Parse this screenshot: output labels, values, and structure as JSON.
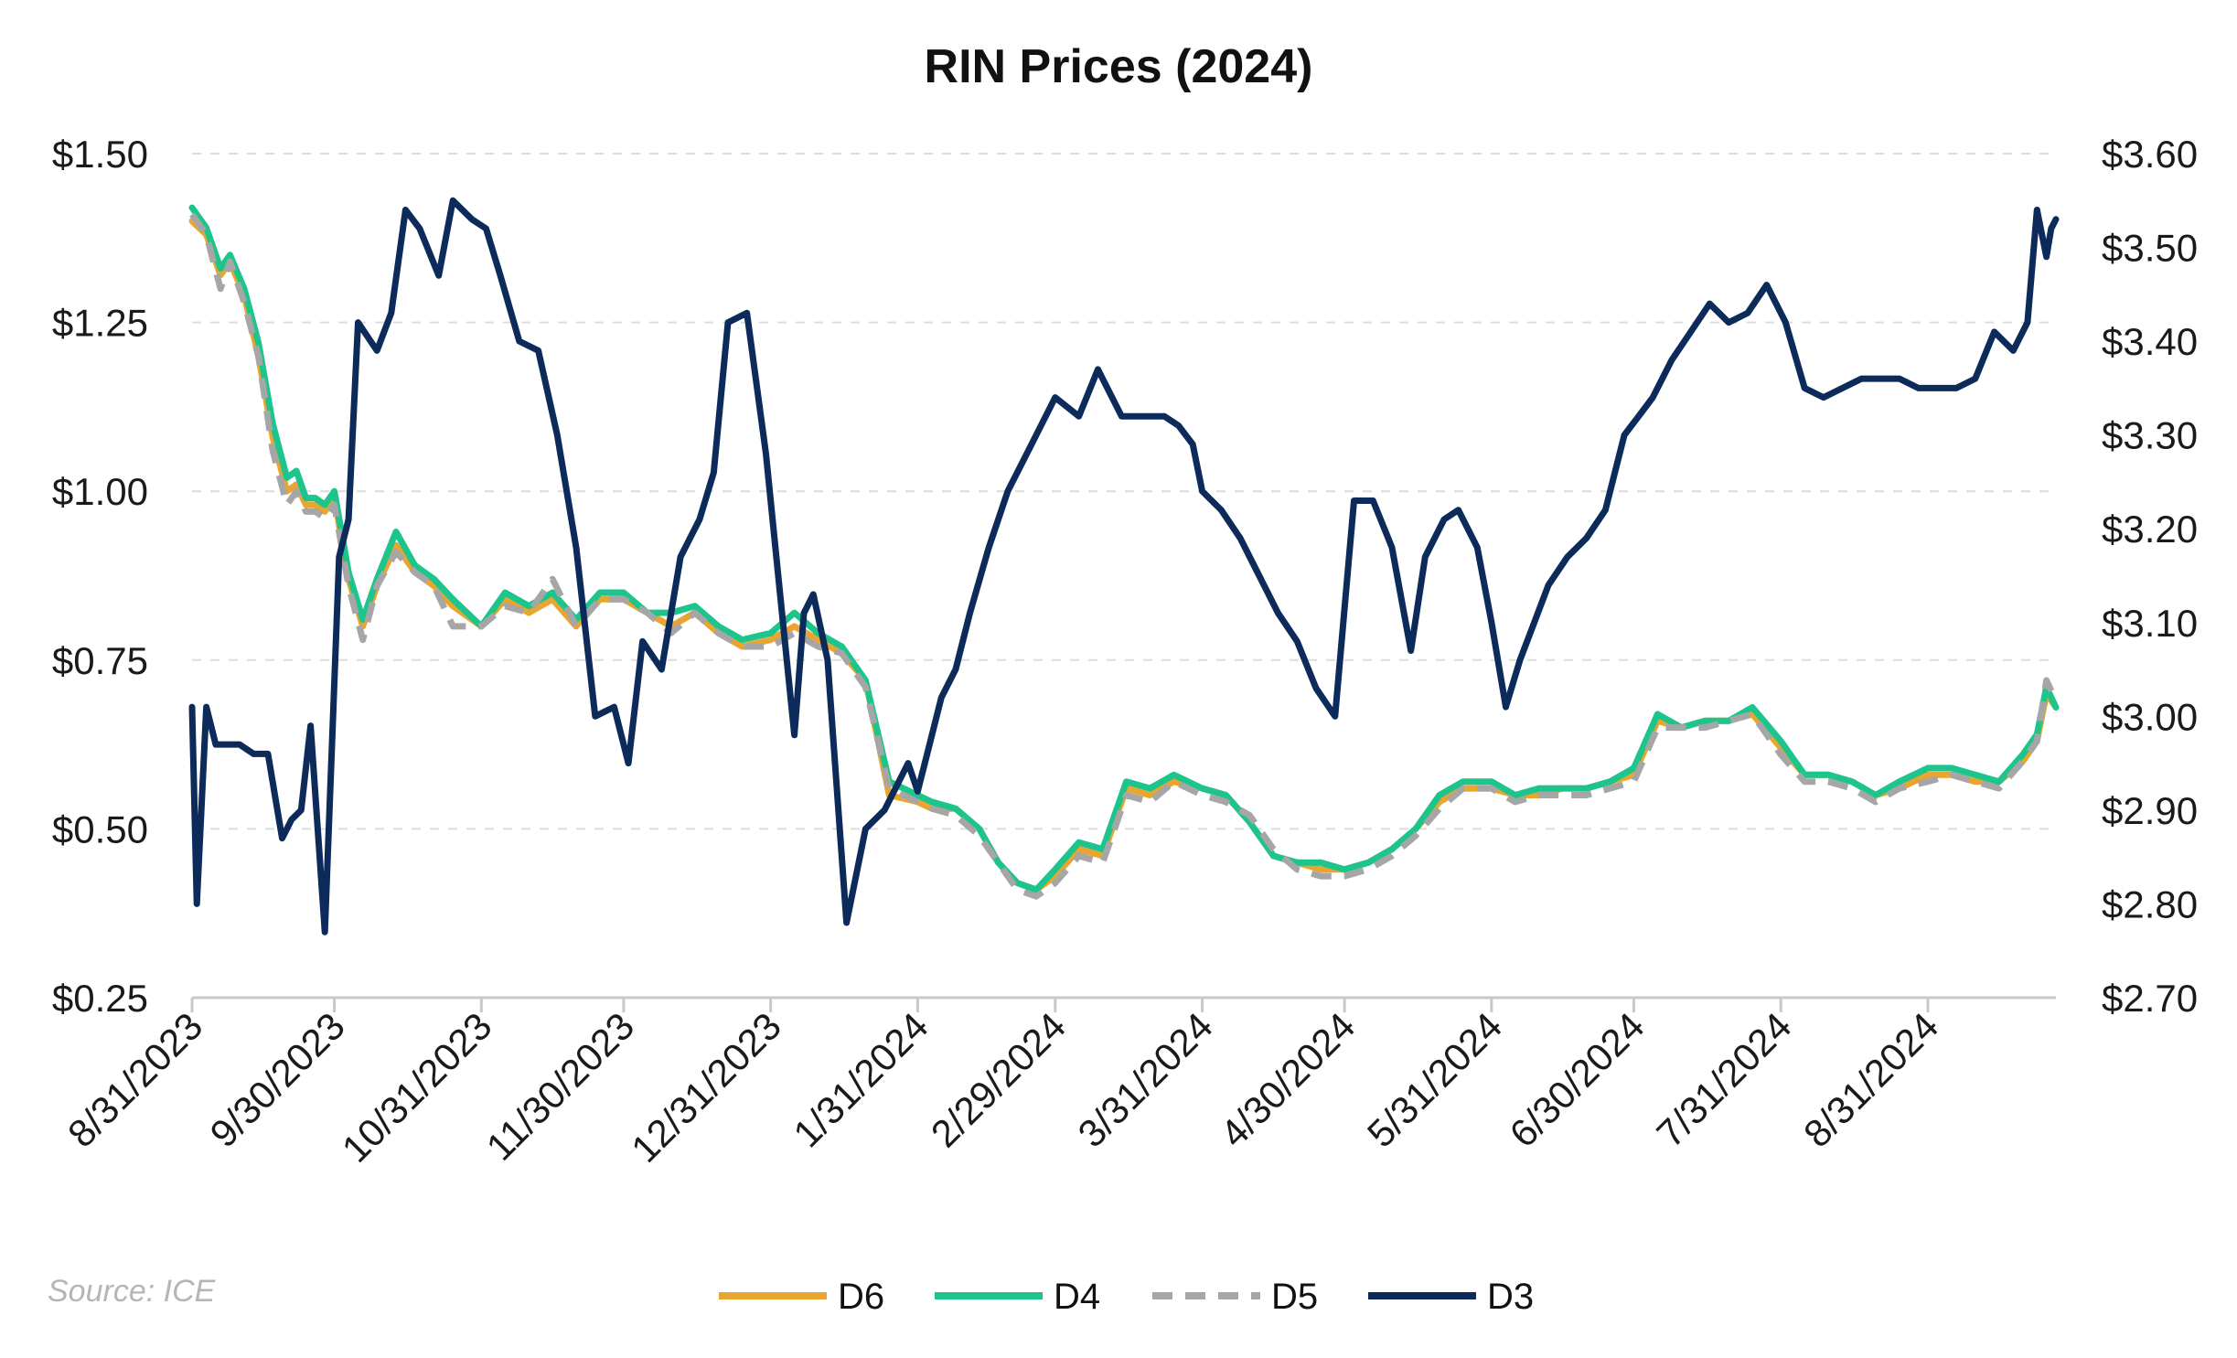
{
  "chart_data": {
    "type": "line",
    "title": "RIN Prices (2024)",
    "source": "Source: ICE",
    "x_tick_labels": [
      "8/31/2023",
      "9/30/2023",
      "10/31/2023",
      "11/30/2023",
      "12/31/2023",
      "1/31/2024",
      "2/29/2024",
      "3/31/2024",
      "4/30/2024",
      "5/31/2024",
      "6/30/2024",
      "7/31/2024",
      "8/31/2024"
    ],
    "x_ticks": [
      "2023-08-31",
      "2023-09-30",
      "2023-10-31",
      "2023-11-30",
      "2023-12-31",
      "2024-01-31",
      "2024-02-29",
      "2024-03-31",
      "2024-04-30",
      "2024-05-31",
      "2024-06-30",
      "2024-07-31",
      "2024-08-31"
    ],
    "x_range": [
      "2023-08-31",
      "2024-09-27"
    ],
    "y_left": {
      "range": [
        0.25,
        1.5
      ],
      "ticks": [
        "$0.25",
        "$0.50",
        "$0.75",
        "$1.00",
        "$1.25",
        "$1.50"
      ],
      "tick_values": [
        0.25,
        0.5,
        0.75,
        1.0,
        1.25,
        1.5
      ]
    },
    "y_right": {
      "range": [
        2.7,
        3.6
      ],
      "ticks": [
        "$2.70",
        "$2.80",
        "$2.90",
        "$3.00",
        "$3.10",
        "$3.20",
        "$3.30",
        "$3.40",
        "$3.50",
        "$3.60"
      ],
      "tick_values": [
        2.7,
        2.8,
        2.9,
        3.0,
        3.1,
        3.2,
        3.3,
        3.4,
        3.5,
        3.6
      ]
    },
    "grid": "horizontal dashed",
    "legend_position": "bottom",
    "series": [
      {
        "name": "D6",
        "axis": "left",
        "color": "#E8A530",
        "style": "solid",
        "x": [
          "2023-08-31",
          "2023-09-03",
          "2023-09-06",
          "2023-09-08",
          "2023-09-11",
          "2023-09-14",
          "2023-09-17",
          "2023-09-20",
          "2023-09-22",
          "2023-09-24",
          "2023-09-26",
          "2023-09-28",
          "2023-09-30",
          "2023-10-03",
          "2023-10-06",
          "2023-10-09",
          "2023-10-13",
          "2023-10-17",
          "2023-10-21",
          "2023-10-25",
          "2023-10-31",
          "2023-11-05",
          "2023-11-10",
          "2023-11-15",
          "2023-11-20",
          "2023-11-25",
          "2023-11-30",
          "2023-12-05",
          "2023-12-10",
          "2023-12-15",
          "2023-12-20",
          "2023-12-25",
          "2023-12-31",
          "2024-01-05",
          "2024-01-10",
          "2024-01-15",
          "2024-01-20",
          "2024-01-25",
          "2024-01-31",
          "2024-02-03",
          "2024-02-08",
          "2024-02-13",
          "2024-02-17",
          "2024-02-21",
          "2024-02-25",
          "2024-02-29",
          "2024-03-05",
          "2024-03-10",
          "2024-03-15",
          "2024-03-20",
          "2024-03-25",
          "2024-03-31",
          "2024-04-05",
          "2024-04-10",
          "2024-04-15",
          "2024-04-20",
          "2024-04-25",
          "2024-04-30",
          "2024-05-05",
          "2024-05-10",
          "2024-05-15",
          "2024-05-20",
          "2024-05-25",
          "2024-05-31",
          "2024-06-05",
          "2024-06-10",
          "2024-06-15",
          "2024-06-20",
          "2024-06-25",
          "2024-06-30",
          "2024-07-05",
          "2024-07-10",
          "2024-07-15",
          "2024-07-20",
          "2024-07-25",
          "2024-07-31",
          "2024-08-05",
          "2024-08-10",
          "2024-08-15",
          "2024-08-20",
          "2024-08-25",
          "2024-08-31",
          "2024-09-05",
          "2024-09-10",
          "2024-09-15",
          "2024-09-20",
          "2024-09-23",
          "2024-09-25",
          "2024-09-27"
        ],
        "values": [
          1.4,
          1.38,
          1.32,
          1.34,
          1.29,
          1.2,
          1.08,
          1.0,
          1.01,
          0.98,
          0.98,
          0.97,
          0.99,
          0.87,
          0.8,
          0.86,
          0.92,
          0.88,
          0.86,
          0.83,
          0.8,
          0.84,
          0.82,
          0.84,
          0.8,
          0.84,
          0.84,
          0.82,
          0.8,
          0.82,
          0.79,
          0.77,
          0.78,
          0.8,
          0.78,
          0.76,
          0.72,
          0.55,
          0.54,
          0.53,
          0.53,
          0.5,
          0.45,
          0.42,
          0.41,
          0.43,
          0.47,
          0.46,
          0.56,
          0.55,
          0.57,
          0.56,
          0.55,
          0.51,
          0.46,
          0.45,
          0.44,
          0.44,
          0.45,
          0.47,
          0.5,
          0.54,
          0.56,
          0.56,
          0.55,
          0.55,
          0.56,
          0.56,
          0.57,
          0.58,
          0.66,
          0.65,
          0.66,
          0.66,
          0.67,
          0.62,
          0.58,
          0.58,
          0.57,
          0.55,
          0.56,
          0.58,
          0.58,
          0.57,
          0.57,
          0.6,
          0.63,
          0.7,
          0.68
        ]
      },
      {
        "name": "D4",
        "axis": "left",
        "color": "#1DC58C",
        "style": "solid",
        "x": [
          "2023-08-31",
          "2023-09-03",
          "2023-09-06",
          "2023-09-08",
          "2023-09-11",
          "2023-09-14",
          "2023-09-17",
          "2023-09-20",
          "2023-09-22",
          "2023-09-24",
          "2023-09-26",
          "2023-09-28",
          "2023-09-30",
          "2023-10-03",
          "2023-10-06",
          "2023-10-09",
          "2023-10-13",
          "2023-10-17",
          "2023-10-21",
          "2023-10-25",
          "2023-10-31",
          "2023-11-05",
          "2023-11-10",
          "2023-11-15",
          "2023-11-20",
          "2023-11-25",
          "2023-11-30",
          "2023-12-05",
          "2023-12-10",
          "2023-12-15",
          "2023-12-20",
          "2023-12-25",
          "2023-12-31",
          "2024-01-05",
          "2024-01-10",
          "2024-01-15",
          "2024-01-20",
          "2024-01-25",
          "2024-01-31",
          "2024-02-03",
          "2024-02-08",
          "2024-02-13",
          "2024-02-17",
          "2024-02-21",
          "2024-02-25",
          "2024-02-29",
          "2024-03-05",
          "2024-03-10",
          "2024-03-15",
          "2024-03-20",
          "2024-03-25",
          "2024-03-31",
          "2024-04-05",
          "2024-04-10",
          "2024-04-15",
          "2024-04-20",
          "2024-04-25",
          "2024-04-30",
          "2024-05-05",
          "2024-05-10",
          "2024-05-15",
          "2024-05-20",
          "2024-05-25",
          "2024-05-31",
          "2024-06-05",
          "2024-06-10",
          "2024-06-15",
          "2024-06-20",
          "2024-06-25",
          "2024-06-30",
          "2024-07-05",
          "2024-07-10",
          "2024-07-15",
          "2024-07-20",
          "2024-07-25",
          "2024-07-31",
          "2024-08-05",
          "2024-08-10",
          "2024-08-15",
          "2024-08-20",
          "2024-08-25",
          "2024-08-31",
          "2024-09-05",
          "2024-09-10",
          "2024-09-15",
          "2024-09-20",
          "2024-09-23",
          "2024-09-25",
          "2024-09-27"
        ],
        "values": [
          1.42,
          1.39,
          1.33,
          1.35,
          1.3,
          1.22,
          1.1,
          1.02,
          1.03,
          0.99,
          0.99,
          0.98,
          1.0,
          0.88,
          0.81,
          0.87,
          0.94,
          0.89,
          0.87,
          0.84,
          0.8,
          0.85,
          0.83,
          0.85,
          0.81,
          0.85,
          0.85,
          0.82,
          0.82,
          0.83,
          0.8,
          0.78,
          0.79,
          0.82,
          0.79,
          0.77,
          0.72,
          0.57,
          0.55,
          0.54,
          0.53,
          0.5,
          0.45,
          0.42,
          0.41,
          0.44,
          0.48,
          0.47,
          0.57,
          0.56,
          0.58,
          0.56,
          0.55,
          0.51,
          0.46,
          0.45,
          0.45,
          0.44,
          0.45,
          0.47,
          0.5,
          0.55,
          0.57,
          0.57,
          0.55,
          0.56,
          0.56,
          0.56,
          0.57,
          0.59,
          0.67,
          0.65,
          0.66,
          0.66,
          0.68,
          0.63,
          0.58,
          0.58,
          0.57,
          0.55,
          0.57,
          0.59,
          0.59,
          0.58,
          0.57,
          0.61,
          0.64,
          0.71,
          0.68
        ]
      },
      {
        "name": "D5",
        "axis": "left",
        "color": "#A6A6A6",
        "style": "dashed",
        "x": [
          "2023-08-31",
          "2023-09-03",
          "2023-09-06",
          "2023-09-08",
          "2023-09-11",
          "2023-09-14",
          "2023-09-17",
          "2023-09-20",
          "2023-09-22",
          "2023-09-24",
          "2023-09-26",
          "2023-09-28",
          "2023-09-30",
          "2023-10-03",
          "2023-10-06",
          "2023-10-09",
          "2023-10-13",
          "2023-10-17",
          "2023-10-21",
          "2023-10-25",
          "2023-10-31",
          "2023-11-05",
          "2023-11-10",
          "2023-11-15",
          "2023-11-20",
          "2023-11-25",
          "2023-11-30",
          "2023-12-05",
          "2023-12-10",
          "2023-12-15",
          "2023-12-20",
          "2023-12-25",
          "2023-12-31",
          "2024-01-05",
          "2024-01-10",
          "2024-01-15",
          "2024-01-20",
          "2024-01-25",
          "2024-01-31",
          "2024-02-03",
          "2024-02-08",
          "2024-02-13",
          "2024-02-17",
          "2024-02-21",
          "2024-02-25",
          "2024-02-29",
          "2024-03-05",
          "2024-03-10",
          "2024-03-15",
          "2024-03-20",
          "2024-03-25",
          "2024-03-31",
          "2024-04-05",
          "2024-04-10",
          "2024-04-15",
          "2024-04-20",
          "2024-04-25",
          "2024-04-30",
          "2024-05-05",
          "2024-05-10",
          "2024-05-15",
          "2024-05-20",
          "2024-05-25",
          "2024-05-31",
          "2024-06-05",
          "2024-06-10",
          "2024-06-15",
          "2024-06-20",
          "2024-06-25",
          "2024-06-30",
          "2024-07-05",
          "2024-07-10",
          "2024-07-15",
          "2024-07-20",
          "2024-07-25",
          "2024-07-31",
          "2024-08-05",
          "2024-08-10",
          "2024-08-15",
          "2024-08-20",
          "2024-08-25",
          "2024-08-31",
          "2024-09-05",
          "2024-09-10",
          "2024-09-15",
          "2024-09-20",
          "2024-09-23",
          "2024-09-25",
          "2024-09-27"
        ],
        "values": [
          1.41,
          1.38,
          1.3,
          1.34,
          1.28,
          1.2,
          1.06,
          0.98,
          1.0,
          0.97,
          0.97,
          0.96,
          0.98,
          0.86,
          0.78,
          0.86,
          0.91,
          0.88,
          0.86,
          0.8,
          0.8,
          0.83,
          0.82,
          0.87,
          0.8,
          0.84,
          0.84,
          0.82,
          0.79,
          0.82,
          0.79,
          0.77,
          0.77,
          0.79,
          0.77,
          0.76,
          0.71,
          0.56,
          0.54,
          0.53,
          0.52,
          0.49,
          0.45,
          0.41,
          0.4,
          0.42,
          0.46,
          0.45,
          0.55,
          0.54,
          0.57,
          0.55,
          0.54,
          0.52,
          0.47,
          0.44,
          0.43,
          0.43,
          0.44,
          0.46,
          0.49,
          0.53,
          0.56,
          0.56,
          0.54,
          0.55,
          0.55,
          0.55,
          0.56,
          0.57,
          0.65,
          0.65,
          0.65,
          0.66,
          0.67,
          0.61,
          0.57,
          0.57,
          0.56,
          0.54,
          0.56,
          0.57,
          0.58,
          0.57,
          0.56,
          0.6,
          0.63,
          0.72,
          0.69
        ]
      },
      {
        "name": "D3",
        "axis": "right",
        "color": "#0D2B5A",
        "style": "solid",
        "x": [
          "2023-08-31",
          "2023-09-01",
          "2023-09-03",
          "2023-09-05",
          "2023-09-08",
          "2023-09-10",
          "2023-09-13",
          "2023-09-16",
          "2023-09-19",
          "2023-09-21",
          "2023-09-23",
          "2023-09-25",
          "2023-09-28",
          "2023-10-01",
          "2023-10-03",
          "2023-10-05",
          "2023-10-09",
          "2023-10-12",
          "2023-10-15",
          "2023-10-18",
          "2023-10-22",
          "2023-10-25",
          "2023-10-29",
          "2023-11-01",
          "2023-11-04",
          "2023-11-08",
          "2023-11-12",
          "2023-11-16",
          "2023-11-20",
          "2023-11-24",
          "2023-11-28",
          "2023-12-01",
          "2023-12-04",
          "2023-12-08",
          "2023-12-12",
          "2023-12-16",
          "2023-12-19",
          "2023-12-22",
          "2023-12-26",
          "2023-12-30",
          "2024-01-02",
          "2024-01-05",
          "2024-01-07",
          "2024-01-09",
          "2024-01-12",
          "2024-01-16",
          "2024-01-20",
          "2024-01-24",
          "2024-01-29",
          "2024-01-31",
          "2024-02-02",
          "2024-02-05",
          "2024-02-08",
          "2024-02-11",
          "2024-02-15",
          "2024-02-19",
          "2024-02-24",
          "2024-02-29",
          "2024-03-05",
          "2024-03-09",
          "2024-03-14",
          "2024-03-19",
          "2024-03-23",
          "2024-03-26",
          "2024-03-29",
          "2024-03-31",
          "2024-04-04",
          "2024-04-08",
          "2024-04-12",
          "2024-04-16",
          "2024-04-20",
          "2024-04-24",
          "2024-04-28",
          "2024-05-02",
          "2024-05-06",
          "2024-05-10",
          "2024-05-14",
          "2024-05-17",
          "2024-05-21",
          "2024-05-24",
          "2024-05-28",
          "2024-05-31",
          "2024-06-03",
          "2024-06-06",
          "2024-06-09",
          "2024-06-12",
          "2024-06-16",
          "2024-06-20",
          "2024-06-24",
          "2024-06-28",
          "2024-07-01",
          "2024-07-04",
          "2024-07-08",
          "2024-07-12",
          "2024-07-16",
          "2024-07-20",
          "2024-07-24",
          "2024-07-28",
          "2024-08-01",
          "2024-08-05",
          "2024-08-09",
          "2024-08-13",
          "2024-08-17",
          "2024-08-21",
          "2024-08-25",
          "2024-08-29",
          "2024-09-02",
          "2024-09-06",
          "2024-09-10",
          "2024-09-14",
          "2024-09-18",
          "2024-09-21",
          "2024-09-23",
          "2024-09-25",
          "2024-09-26",
          "2024-09-27"
        ],
        "values": [
          3.01,
          2.8,
          3.01,
          2.97,
          2.97,
          2.97,
          2.96,
          2.96,
          2.87,
          2.89,
          2.9,
          2.99,
          2.77,
          3.17,
          3.21,
          3.42,
          3.39,
          3.43,
          3.54,
          3.52,
          3.47,
          3.55,
          3.53,
          3.52,
          3.47,
          3.4,
          3.39,
          3.3,
          3.18,
          3.0,
          3.01,
          2.95,
          3.08,
          3.05,
          3.17,
          3.21,
          3.26,
          3.42,
          3.43,
          3.28,
          3.13,
          2.98,
          3.11,
          3.13,
          3.06,
          2.78,
          2.88,
          2.9,
          2.95,
          2.92,
          2.96,
          3.02,
          3.05,
          3.11,
          3.18,
          3.24,
          3.29,
          3.34,
          3.32,
          3.37,
          3.32,
          3.32,
          3.32,
          3.31,
          3.29,
          3.24,
          3.22,
          3.19,
          3.15,
          3.11,
          3.08,
          3.03,
          3.0,
          3.23,
          3.23,
          3.18,
          3.07,
          3.17,
          3.21,
          3.22,
          3.18,
          3.1,
          3.01,
          3.06,
          3.1,
          3.14,
          3.17,
          3.19,
          3.22,
          3.3,
          3.32,
          3.34,
          3.38,
          3.41,
          3.44,
          3.42,
          3.43,
          3.46,
          3.42,
          3.35,
          3.34,
          3.35,
          3.36,
          3.36,
          3.36,
          3.35,
          3.35,
          3.35,
          3.36,
          3.41,
          3.39,
          3.42,
          3.54,
          3.49,
          3.52,
          3.53
        ]
      }
    ]
  }
}
